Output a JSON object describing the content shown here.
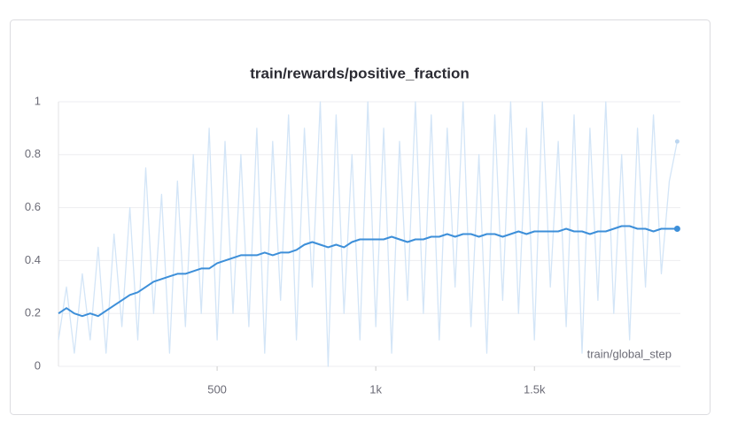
{
  "chart_data": {
    "type": "line",
    "title": "train/rewards/positive_fraction",
    "xlabel": "train/global_step",
    "x": [
      0,
      25,
      50,
      75,
      100,
      125,
      150,
      175,
      200,
      225,
      250,
      275,
      300,
      325,
      350,
      375,
      400,
      425,
      450,
      475,
      500,
      525,
      550,
      575,
      600,
      625,
      650,
      675,
      700,
      725,
      750,
      775,
      800,
      825,
      850,
      875,
      900,
      925,
      950,
      975,
      1000,
      1025,
      1050,
      1075,
      1100,
      1125,
      1150,
      1175,
      1200,
      1225,
      1250,
      1275,
      1300,
      1325,
      1350,
      1375,
      1400,
      1425,
      1450,
      1475,
      1500,
      1525,
      1550,
      1575,
      1600,
      1625,
      1650,
      1675,
      1700,
      1725,
      1750,
      1775,
      1800,
      1825,
      1850,
      1875,
      1900,
      1925,
      1950
    ],
    "series": [
      {
        "color": "#d3e5f7",
        "values": [
          0.1,
          0.3,
          0.05,
          0.35,
          0.1,
          0.45,
          0.05,
          0.5,
          0.15,
          0.6,
          0.1,
          0.75,
          0.2,
          0.65,
          0.05,
          0.7,
          0.15,
          0.8,
          0.2,
          0.9,
          0.1,
          0.85,
          0.2,
          0.8,
          0.15,
          0.9,
          0.05,
          0.85,
          0.25,
          0.95,
          0.1,
          0.9,
          0.3,
          1,
          0,
          0.95,
          0.2,
          0.8,
          0.1,
          1,
          0.15,
          0.9,
          0.05,
          0.85,
          0.25,
          1,
          0.2,
          0.95,
          0.1,
          0.9,
          0.3,
          1,
          0.15,
          0.8,
          0.05,
          0.95,
          0.25,
          1,
          0.2,
          0.9,
          0.1,
          1,
          0.3,
          0.85,
          0.15,
          0.95,
          0.05,
          0.9,
          0.25,
          1,
          0.2,
          0.8,
          0.1,
          0.9,
          0.3,
          0.95,
          0.35,
          0.7,
          0.85
        ]
      },
      {
        "color": "#3d8fd9",
        "values": [
          0.2,
          0.22,
          0.2,
          0.19,
          0.2,
          0.19,
          0.21,
          0.23,
          0.25,
          0.27,
          0.28,
          0.3,
          0.32,
          0.33,
          0.34,
          0.35,
          0.35,
          0.36,
          0.37,
          0.37,
          0.39,
          0.4,
          0.41,
          0.42,
          0.42,
          0.42,
          0.43,
          0.42,
          0.43,
          0.43,
          0.44,
          0.46,
          0.47,
          0.46,
          0.45,
          0.46,
          0.45,
          0.47,
          0.48,
          0.48,
          0.48,
          0.48,
          0.49,
          0.48,
          0.47,
          0.48,
          0.48,
          0.49,
          0.49,
          0.5,
          0.49,
          0.5,
          0.5,
          0.49,
          0.5,
          0.5,
          0.49,
          0.5,
          0.51,
          0.5,
          0.51,
          0.51,
          0.51,
          0.51,
          0.52,
          0.51,
          0.51,
          0.5,
          0.51,
          0.51,
          0.52,
          0.53,
          0.53,
          0.52,
          0.52,
          0.51,
          0.52,
          0.52,
          0.52
        ]
      }
    ],
    "xlim": [
      0,
      1960
    ],
    "ylim": [
      0,
      1
    ],
    "xticks": [
      500,
      {
        "value": 1000,
        "label": "1k"
      },
      {
        "value": 1500,
        "label": "1.5k"
      }
    ],
    "yticks": [
      0,
      0.2,
      0.4,
      0.6,
      0.8,
      1
    ],
    "grid": true
  }
}
